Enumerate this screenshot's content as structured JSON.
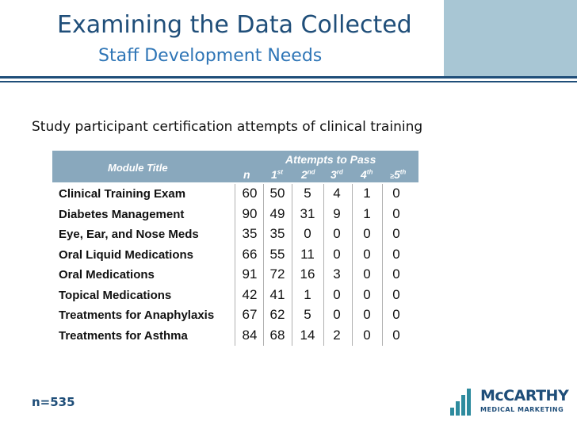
{
  "header": {
    "title": "Examining the Data Collected",
    "subtitle": "Staff Development Needs"
  },
  "intro": "Study participant certification attempts of clinical training",
  "table": {
    "module_header": "Module Title",
    "group_header": "Attempts to Pass",
    "columns": [
      {
        "base": "n",
        "sup": "",
        "prefix": ""
      },
      {
        "base": "1",
        "sup": "st",
        "prefix": ""
      },
      {
        "base": "2",
        "sup": "nd",
        "prefix": ""
      },
      {
        "base": "3",
        "sup": "rd",
        "prefix": ""
      },
      {
        "base": "4",
        "sup": "th",
        "prefix": ""
      },
      {
        "base": "5",
        "sup": "th",
        "prefix": "≥"
      }
    ],
    "rows": [
      {
        "module": "Clinical Training Exam",
        "values": [
          "60",
          "50",
          "5",
          "4",
          "1",
          "0"
        ]
      },
      {
        "module": "Diabetes Management",
        "values": [
          "90",
          "49",
          "31",
          "9",
          "1",
          "0"
        ]
      },
      {
        "module": "Eye, Ear, and Nose Meds",
        "values": [
          "35",
          "35",
          "0",
          "0",
          "0",
          "0"
        ]
      },
      {
        "module": "Oral Liquid Medications",
        "values": [
          "66",
          "55",
          "11",
          "0",
          "0",
          "0"
        ]
      },
      {
        "module": "Oral Medications",
        "values": [
          "91",
          "72",
          "16",
          "3",
          "0",
          "0"
        ]
      },
      {
        "module": "Topical Medications",
        "values": [
          "42",
          "41",
          "1",
          "0",
          "0",
          "0"
        ]
      },
      {
        "module": "Treatments for Anaphylaxis",
        "values": [
          "67",
          "62",
          "5",
          "0",
          "0",
          "0"
        ]
      },
      {
        "module": "Treatments for Asthma",
        "values": [
          "84",
          "68",
          "14",
          "2",
          "0",
          "0"
        ]
      }
    ]
  },
  "footnote": "n=535",
  "logo": {
    "main": "McCARTHY",
    "sub": "MEDICAL MARKETING",
    "icon": "bar-chart-icon"
  },
  "colors": {
    "title": "#1f4e79",
    "subtitle": "#2e75b6",
    "header_band": "#89a8bd",
    "title_tint": "#a8c6d4",
    "logo_accent": "#2e8b9e"
  }
}
